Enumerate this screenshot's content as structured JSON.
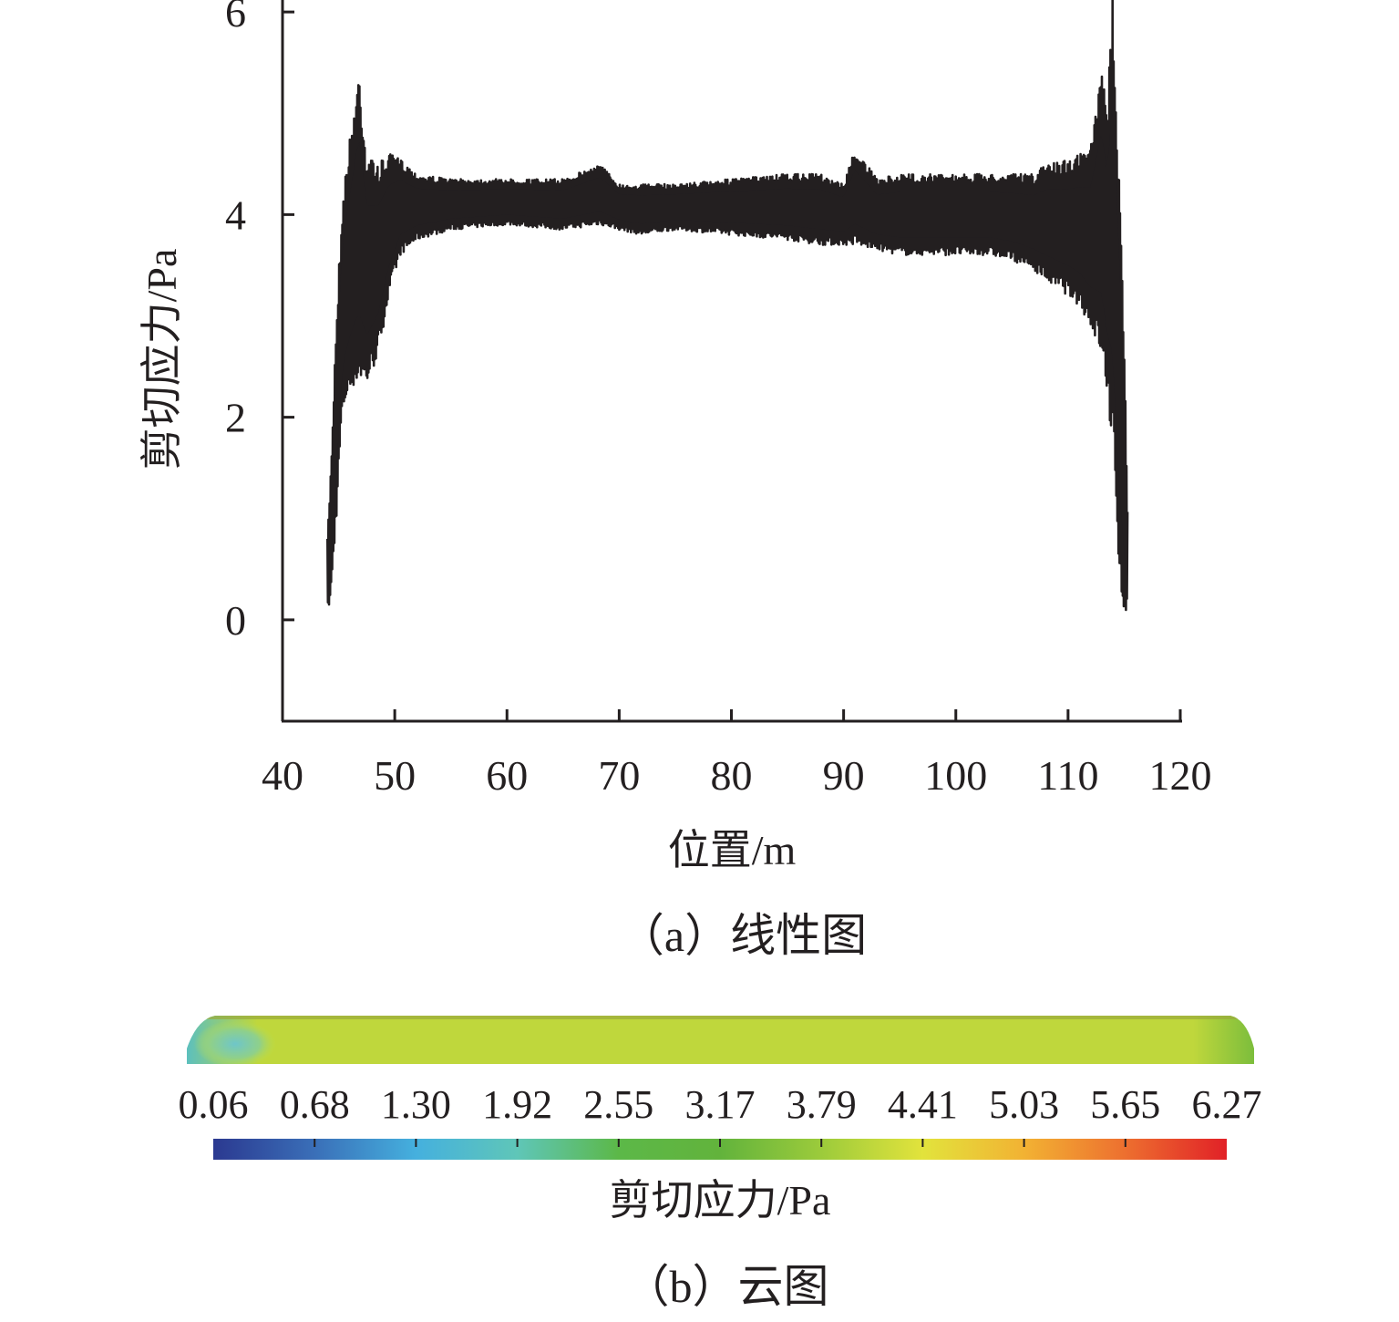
{
  "chart_data": [
    {
      "type": "line",
      "panel": "a",
      "caption": "（a）线性图",
      "xlabel": "位置/m",
      "ylabel": "剪切应力/Pa",
      "xlim": [
        40,
        120
      ],
      "ylim": [
        -1,
        7
      ],
      "x_ticks": [
        "40",
        "50",
        "60",
        "70",
        "80",
        "90",
        "100",
        "110",
        "120"
      ],
      "y_ticks": [
        "0",
        "2",
        "4",
        "6"
      ],
      "grid": false,
      "color": "#231f20",
      "series": [
        {
          "x": [
            44.0,
            44.3,
            44.8,
            45.3,
            45.8,
            46.3,
            46.8,
            47.5,
            48.5,
            49.5,
            50.5,
            52,
            55,
            60,
            65,
            68.3,
            70,
            72,
            75,
            80,
            85,
            88,
            90,
            91,
            93,
            95,
            100,
            103,
            105,
            107,
            108,
            110,
            111,
            112,
            113,
            113.5,
            114,
            114.3,
            114.6,
            115.0,
            115.3
          ],
          "upper": [
            0.8,
            1.5,
            3.0,
            4.1,
            4.6,
            5.0,
            5.45,
            4.6,
            4.5,
            4.6,
            4.55,
            4.4,
            4.35,
            4.35,
            4.35,
            4.5,
            4.3,
            4.3,
            4.3,
            4.35,
            4.4,
            4.4,
            4.3,
            4.65,
            4.35,
            4.4,
            4.4,
            4.4,
            4.4,
            4.4,
            4.5,
            4.55,
            4.6,
            4.65,
            5.45,
            5.0,
            6.27,
            5.2,
            4.3,
            2.8,
            1.2
          ],
          "lower": [
            0.06,
            0.2,
            1.0,
            2.0,
            2.2,
            2.3,
            2.35,
            2.3,
            2.6,
            3.2,
            3.6,
            3.75,
            3.85,
            3.9,
            3.85,
            3.9,
            3.85,
            3.8,
            3.85,
            3.8,
            3.75,
            3.7,
            3.7,
            3.7,
            3.65,
            3.6,
            3.6,
            3.6,
            3.55,
            3.45,
            3.35,
            3.2,
            3.1,
            2.9,
            2.6,
            2.2,
            1.6,
            0.9,
            0.4,
            0.06,
            0.06
          ]
        }
      ]
    },
    {
      "type": "heatmap",
      "panel": "b",
      "caption": "（b）云图",
      "colorbar_label": "剪切应力/Pa",
      "colorbar_ticks": [
        "0.06",
        "0.68",
        "1.30",
        "1.92",
        "2.55",
        "3.17",
        "3.79",
        "4.41",
        "5.03",
        "5.65",
        "6.27"
      ],
      "range": [
        0.06,
        6.27
      ],
      "colormap": [
        "#2b3990",
        "#3a6fb8",
        "#45b0de",
        "#5fc6b8",
        "#5cb848",
        "#62b33c",
        "#9ccb3b",
        "#e2e33c",
        "#f2b233",
        "#ed6f2f",
        "#e12127"
      ],
      "field": [
        {
          "region": "left-end",
          "value": 1.7
        },
        {
          "region": "core",
          "value": 4.1
        },
        {
          "region": "right-end",
          "value": 3.4
        },
        {
          "region": "top-edge",
          "value": 3.5
        }
      ]
    }
  ]
}
